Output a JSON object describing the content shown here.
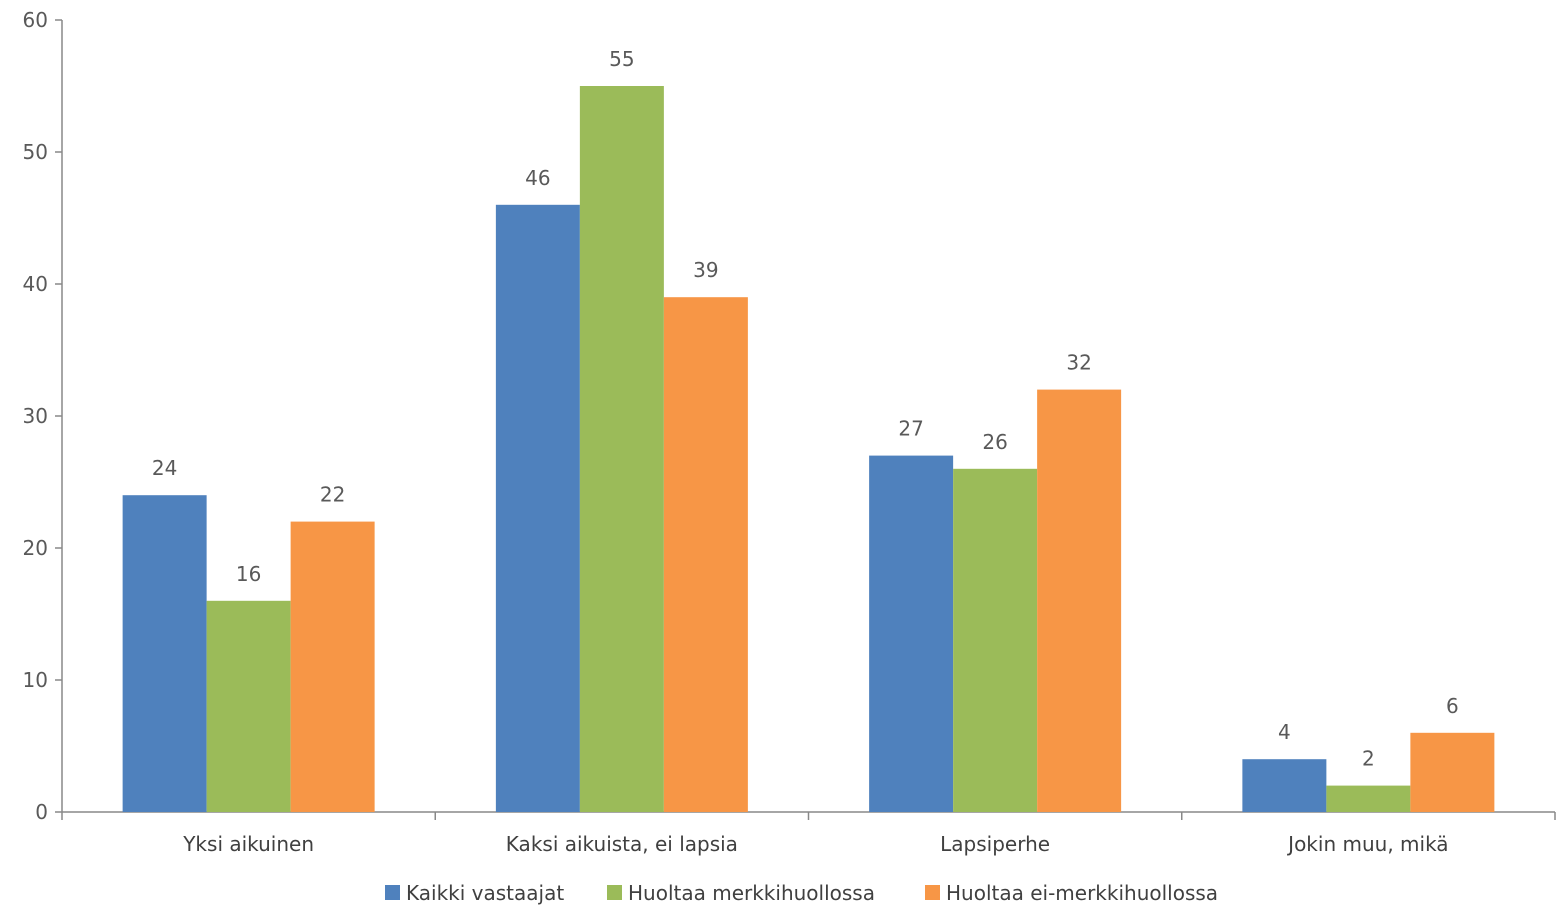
{
  "chart_data": {
    "type": "bar",
    "title": "",
    "xlabel": "",
    "ylabel": "",
    "ylim": [
      0,
      60
    ],
    "yticks": [
      0,
      10,
      20,
      30,
      40,
      50,
      60
    ],
    "grid": false,
    "legend_position": "bottom",
    "categories": [
      "Yksi aikuinen",
      "Kaksi aikuista, ei lapsia",
      "Lapsiperhe",
      "Jokin muu, mikä"
    ],
    "series": [
      {
        "name": "Kaikki vastaajat",
        "color": "#4F81BD",
        "values": [
          24,
          46,
          27,
          4
        ]
      },
      {
        "name": "Huoltaa merkkihuollossa",
        "color": "#9BBB59",
        "values": [
          16,
          55,
          26,
          2
        ]
      },
      {
        "name": "Huoltaa ei-merkkihuollossa",
        "color": "#F79646",
        "values": [
          22,
          39,
          32,
          6
        ]
      }
    ]
  }
}
